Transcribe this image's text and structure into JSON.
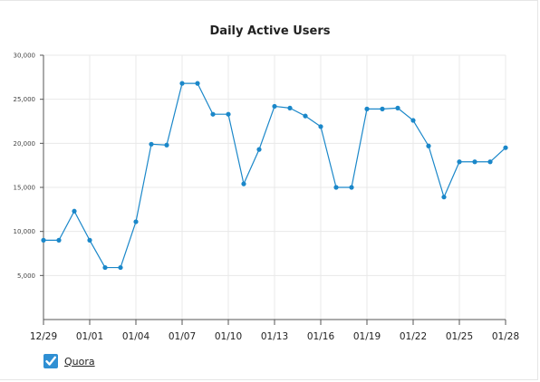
{
  "chart_data": {
    "type": "line",
    "title": "Daily Active Users",
    "xlabel": "",
    "ylabel": "",
    "ylim": [
      0,
      30000
    ],
    "y_ticks": [
      5000,
      10000,
      15000,
      20000,
      25000,
      30000
    ],
    "y_tick_labels": [
      "5,000",
      "10,000",
      "15,000",
      "20,000",
      "25,000",
      "30,000"
    ],
    "x_tick_labels": [
      "12/29",
      "01/01",
      "01/04",
      "01/07",
      "01/10",
      "01/13",
      "01/16",
      "01/19",
      "01/22",
      "01/25",
      "01/28"
    ],
    "x": [
      "12/29",
      "12/30",
      "12/31",
      "01/01",
      "01/02",
      "01/03",
      "01/04",
      "01/05",
      "01/06",
      "01/07",
      "01/08",
      "01/09",
      "01/10",
      "01/11",
      "01/12",
      "01/13",
      "01/14",
      "01/15",
      "01/16",
      "01/17",
      "01/18",
      "01/19",
      "01/20",
      "01/21",
      "01/22",
      "01/23",
      "01/24",
      "01/25",
      "01/26",
      "01/27",
      "01/28"
    ],
    "grid": true,
    "legend_position": "bottom-left",
    "series": [
      {
        "name": "Quora",
        "color": "#1a87c9",
        "values": [
          9000,
          9000,
          12300,
          9000,
          5900,
          5900,
          11100,
          19900,
          19800,
          26800,
          26800,
          23300,
          23300,
          15400,
          19300,
          24200,
          24000,
          23100,
          21900,
          15000,
          15000,
          23900,
          23900,
          24000,
          22600,
          19700,
          13900,
          17900,
          17900,
          17900,
          19500
        ]
      }
    ]
  },
  "legend": {
    "checked": true,
    "icon": "checkmark-icon"
  }
}
